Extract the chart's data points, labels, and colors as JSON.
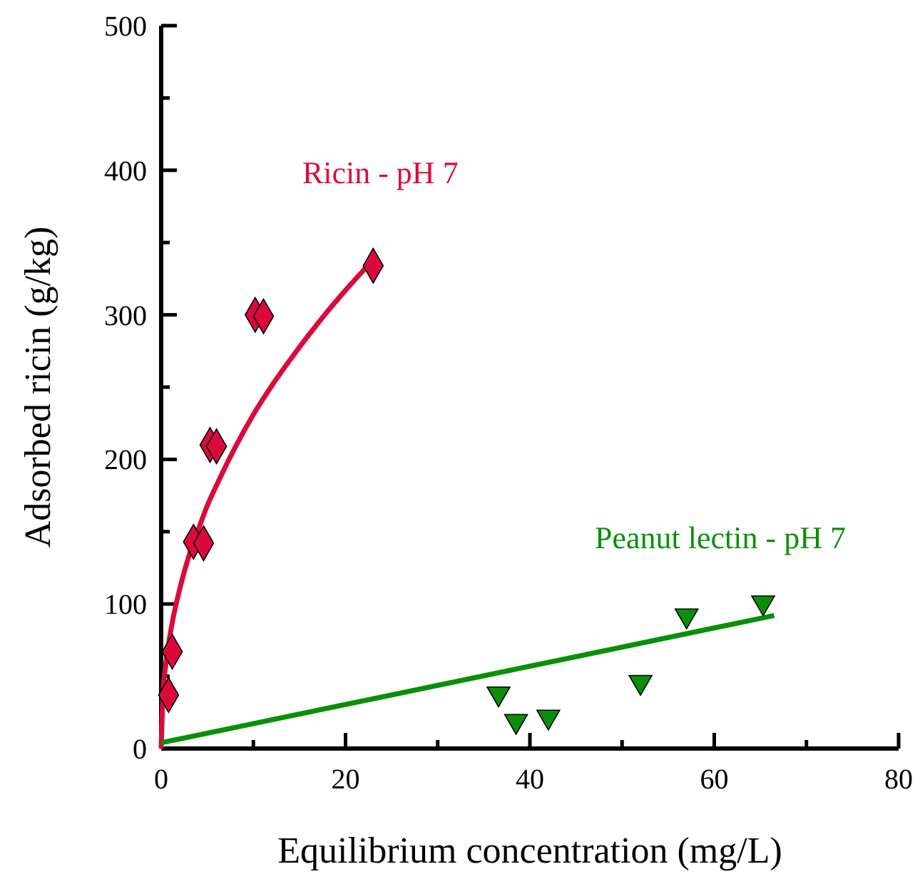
{
  "chart_data": {
    "type": "scatter",
    "xlabel": "Equilibrium concentration (mg/L)",
    "ylabel": "Adsorbed ricin (g/kg)",
    "xlim": [
      0,
      80
    ],
    "ylim": [
      0,
      500
    ],
    "xticks": [
      0,
      {
        "value": 10,
        "label": null
      },
      20,
      {
        "value": 30,
        "label": null
      },
      40,
      {
        "value": 50,
        "label": null
      },
      60,
      {
        "value": 70,
        "label": null
      },
      80
    ],
    "yticks": [
      0,
      {
        "value": 50,
        "label": null
      },
      100,
      {
        "value": 150,
        "label": null
      },
      200,
      {
        "value": 250,
        "label": null
      },
      300,
      {
        "value": 350,
        "label": null
      },
      400,
      {
        "value": 450,
        "label": null
      },
      500
    ],
    "grid": false,
    "series": [
      {
        "name": "Ricin - pH 7",
        "marker": "diamond",
        "color": "#dc0a3c",
        "x": [
          0.8,
          1.2,
          3.5,
          4.6,
          5.3,
          6,
          10.2,
          11.1,
          23
        ],
        "values": [
          37,
          67,
          143,
          142,
          210,
          209,
          300,
          299,
          334
        ]
      },
      {
        "type": "line",
        "color": "#dc0a3c",
        "x": [
          0,
          0.2,
          0.5,
          1,
          2,
          3,
          4,
          5,
          6,
          8,
          10,
          12,
          14,
          16,
          18,
          20,
          23
        ],
        "values": [
          0,
          38,
          58,
          80,
          110,
          133,
          151,
          168,
          182,
          208,
          231,
          251,
          269,
          286,
          302,
          317,
          338
        ]
      },
      {
        "name": "Peanut lectin - pH 7",
        "marker": "triangle",
        "color": "#089008",
        "x": [
          36.6,
          38.5,
          42,
          52,
          57,
          65.3
        ],
        "values": [
          38,
          19,
          22,
          46,
          92,
          101
        ]
      },
      {
        "type": "line",
        "color": "#089008",
        "x": [
          0,
          66.5
        ],
        "values": [
          4,
          92
        ]
      }
    ]
  }
}
